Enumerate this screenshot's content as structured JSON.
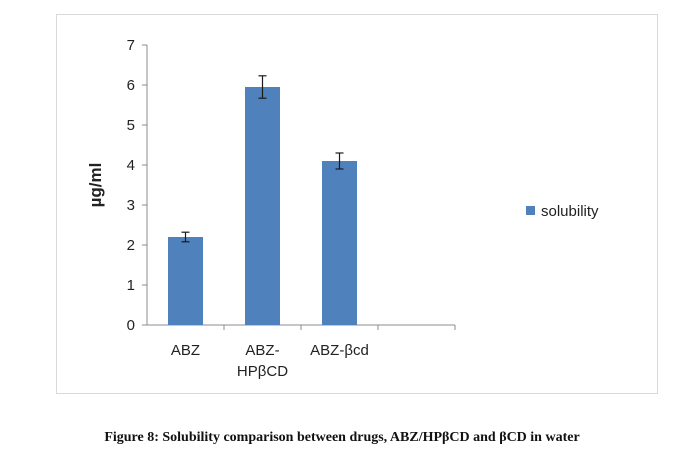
{
  "figure": {
    "caption": "Figure 8: Solubility comparison between drugs, ABZ/HPβCD and βCD in water"
  },
  "chart_data": {
    "type": "bar",
    "categories": [
      [
        "ABZ"
      ],
      [
        "ABZ-",
        "HPβCD"
      ],
      [
        "ABZ-βcd"
      ]
    ],
    "series": [
      {
        "name": "solubility",
        "values": [
          2.2,
          5.95,
          4.1
        ],
        "errors": [
          0.12,
          0.28,
          0.2
        ],
        "color": "#4f81bd"
      }
    ],
    "title": "",
    "xlabel": "",
    "ylabel": "µg/ml",
    "ylim": [
      0,
      7
    ],
    "yticks": [
      0,
      1,
      2,
      3,
      4,
      5,
      6,
      7
    ],
    "grid": false,
    "legend": "right",
    "slots": 4,
    "error_bars": true
  }
}
